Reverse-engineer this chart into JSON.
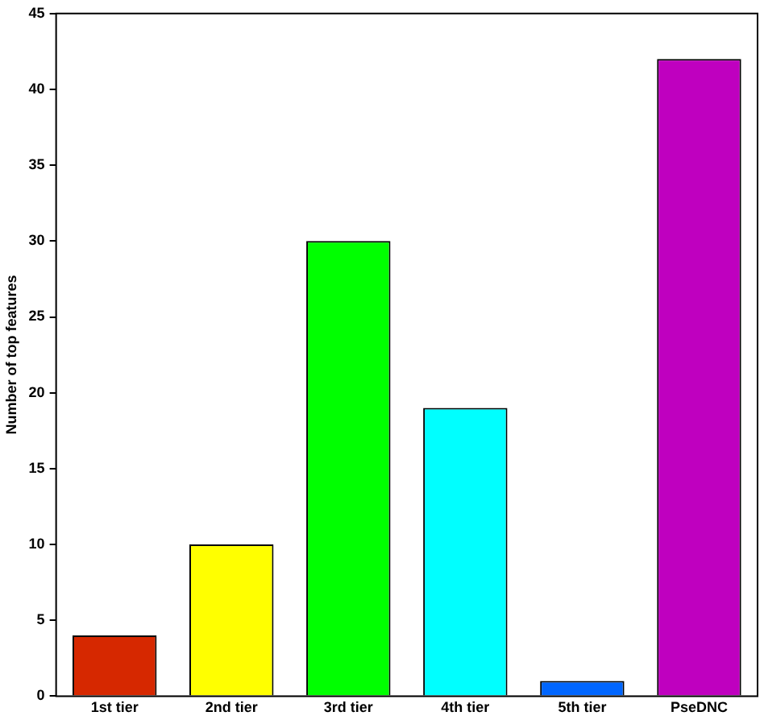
{
  "chart_data": {
    "type": "bar",
    "ylabel": "Number of top features",
    "categories": [
      "1st tier",
      "2nd tier",
      "3rd tier",
      "4th tier",
      "5th tier",
      "PseDNC"
    ],
    "values": [
      4,
      10,
      30,
      19,
      1,
      42
    ],
    "colors": [
      "#d62800",
      "#ffff00",
      "#00ff00",
      "#00ffff",
      "#0066ff",
      "#bf00bf"
    ],
    "ylim": [
      0,
      45
    ],
    "yticks": [
      0,
      5,
      10,
      15,
      20,
      25,
      30,
      35,
      40,
      45
    ],
    "grid": false,
    "legend": false
  }
}
